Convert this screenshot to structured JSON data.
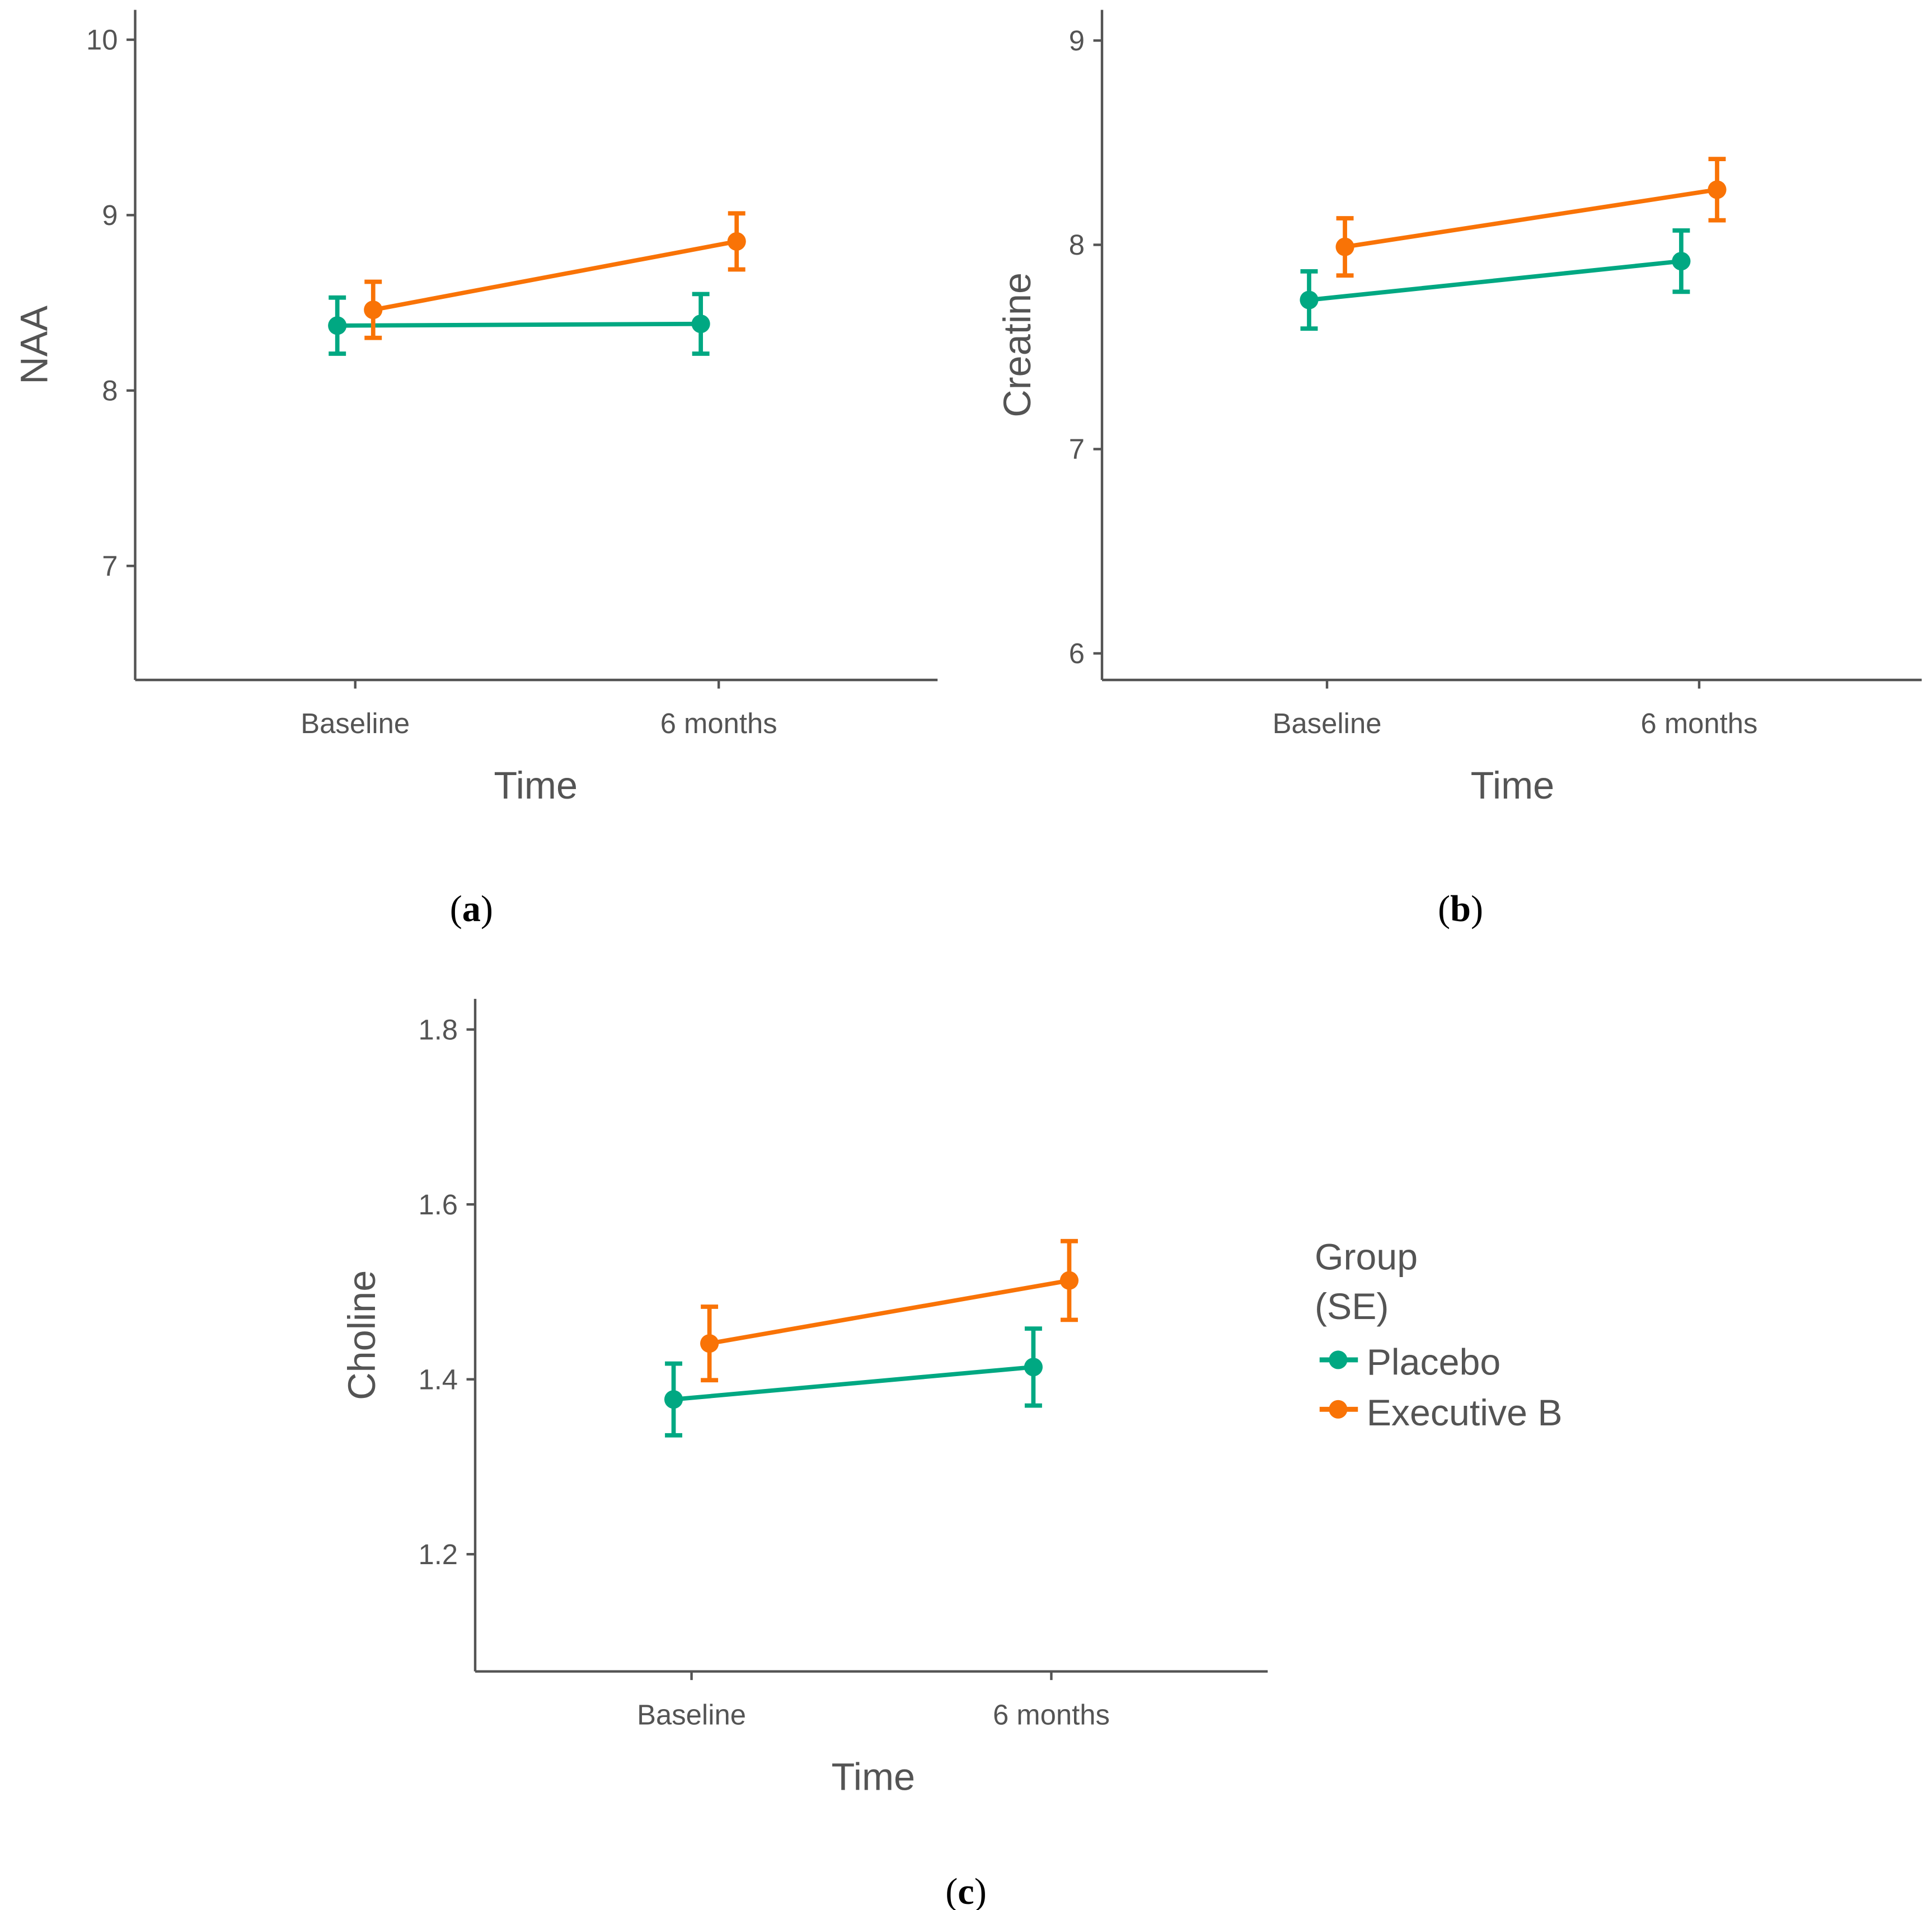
{
  "colors": {
    "placebo": "#00a882",
    "executive": "#f97306",
    "axis": "#545454"
  },
  "legend": {
    "title_line1": "Group",
    "title_line2": "(SE)",
    "items": [
      "Placebo",
      "Executive B"
    ]
  },
  "chart_data": [
    {
      "type": "line",
      "panel_label": "(a)",
      "panel_letter": "a",
      "categories": [
        "Baseline",
        "6 months"
      ],
      "xlabel": "Time",
      "ylabel": "NAA",
      "ylim": [
        6.35,
        10.17
      ],
      "yticks": [
        "7",
        "8",
        "9",
        "10"
      ],
      "series": [
        {
          "name": "Placebo",
          "values": [
            8.37,
            8.38
          ],
          "se": [
            0.16,
            0.17
          ]
        },
        {
          "name": "Executive B",
          "values": [
            8.46,
            8.85
          ],
          "se": [
            0.16,
            0.16
          ]
        }
      ]
    },
    {
      "type": "line",
      "panel_label": "(b)",
      "panel_letter": "b",
      "categories": [
        "Baseline",
        "6 months"
      ],
      "xlabel": "Time",
      "ylabel": "Creatine",
      "ylim": [
        5.87,
        9.15
      ],
      "yticks": [
        "6",
        "7",
        "8",
        "9"
      ],
      "series": [
        {
          "name": "Placebo",
          "values": [
            7.73,
            7.92
          ],
          "se": [
            0.14,
            0.15
          ]
        },
        {
          "name": "Executive B",
          "values": [
            7.99,
            8.27
          ],
          "se": [
            0.14,
            0.15
          ]
        }
      ]
    },
    {
      "type": "line",
      "panel_label": "(c)",
      "panel_letter": "c",
      "categories": [
        "Baseline",
        "6 months"
      ],
      "xlabel": "Time",
      "ylabel": "Choline",
      "ylim": [
        1.066,
        1.835
      ],
      "yticks": [
        "1.2",
        "1.4",
        "1.6",
        "1.8"
      ],
      "series": [
        {
          "name": "Placebo",
          "values": [
            1.377,
            1.414
          ],
          "se": [
            0.041,
            0.044
          ]
        },
        {
          "name": "Executive B",
          "values": [
            1.441,
            1.513
          ],
          "se": [
            0.042,
            0.045
          ]
        }
      ]
    }
  ]
}
